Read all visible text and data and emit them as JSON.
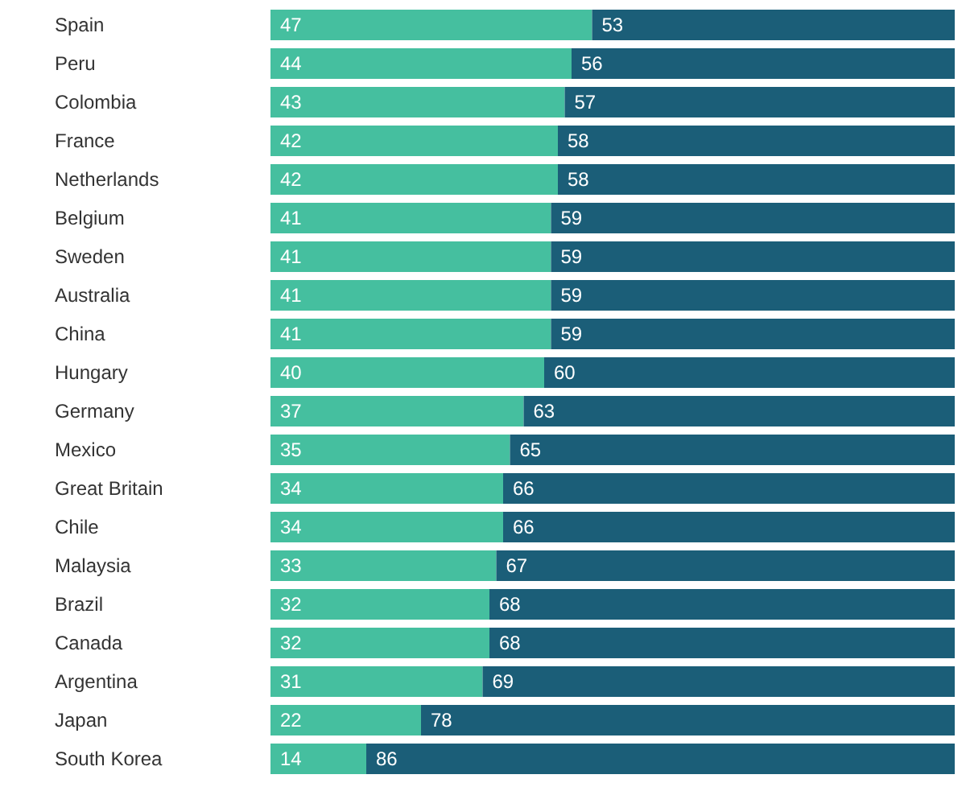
{
  "chart_data": {
    "type": "bar",
    "orientation": "horizontal",
    "stacked": true,
    "data_labels": true,
    "xlim": [
      0,
      100
    ],
    "categories": [
      "Spain",
      "Peru",
      "Colombia",
      "France",
      "Netherlands",
      "Belgium",
      "Sweden",
      "Australia",
      "China",
      "Hungary",
      "Germany",
      "Mexico",
      "Great Britain",
      "Chile",
      "Malaysia",
      "Brazil",
      "Canada",
      "Argentina",
      "Japan",
      "South Korea"
    ],
    "series": [
      {
        "color": "#45bf9f",
        "values": [
          47,
          44,
          43,
          42,
          42,
          41,
          41,
          41,
          41,
          40,
          37,
          35,
          34,
          34,
          33,
          32,
          32,
          31,
          22,
          14
        ]
      },
      {
        "color": "#1b5e78",
        "values": [
          53,
          56,
          57,
          58,
          58,
          59,
          59,
          59,
          59,
          60,
          63,
          65,
          66,
          66,
          67,
          68,
          68,
          69,
          78,
          86
        ]
      }
    ]
  }
}
